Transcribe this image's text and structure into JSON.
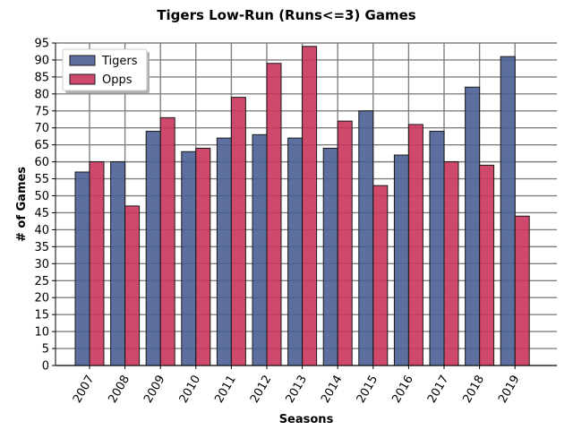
{
  "chart_data": {
    "type": "bar",
    "title": "Tigers Low-Run (Runs<=3) Games",
    "xlabel": "Seasons",
    "ylabel": "# of Games",
    "ylim": [
      0,
      95
    ],
    "yticks": [
      0,
      5,
      10,
      15,
      20,
      25,
      30,
      35,
      40,
      45,
      50,
      55,
      60,
      65,
      70,
      75,
      80,
      85,
      90,
      95
    ],
    "grid": true,
    "legend_position": "top-left",
    "categories": [
      "2007",
      "2008",
      "2009",
      "2010",
      "2011",
      "2012",
      "2013",
      "2014",
      "2015",
      "2016",
      "2017",
      "2018",
      "2019"
    ],
    "series": [
      {
        "name": "Tigers",
        "color": "#4a5f94",
        "values": [
          57,
          60,
          69,
          63,
          67,
          68,
          67,
          64,
          75,
          62,
          69,
          82,
          91
        ]
      },
      {
        "name": "Opps",
        "color": "#c9355b",
        "values": [
          60,
          47,
          73,
          64,
          79,
          89,
          94,
          72,
          53,
          71,
          60,
          59,
          44
        ]
      }
    ]
  }
}
